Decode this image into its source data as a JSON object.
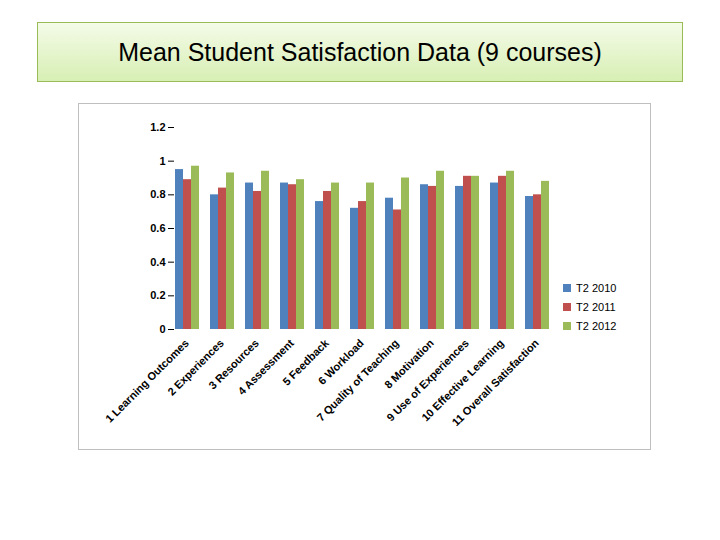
{
  "chart_data": {
    "type": "bar",
    "title": "Mean Student Satisfaction Data (9 courses)",
    "categories": [
      "1 Learning Outcomes",
      "2 Experiences",
      "3 Resources",
      "4 Assessment",
      "5 Feedback",
      "6 Workload",
      "7 Quality of Teaching",
      "8 Motivation",
      "9 Use of Experiences",
      "10 Effective Learning",
      "11 Overall Satisfaction"
    ],
    "series": [
      {
        "name": "T2 2010",
        "color": "#4f81bd",
        "values": [
          0.95,
          0.8,
          0.87,
          0.87,
          0.76,
          0.72,
          0.78,
          0.86,
          0.85,
          0.87,
          0.79
        ]
      },
      {
        "name": "T2 2011",
        "color": "#c0504d",
        "values": [
          0.89,
          0.84,
          0.82,
          0.86,
          0.82,
          0.76,
          0.71,
          0.85,
          0.91,
          0.91,
          0.8
        ]
      },
      {
        "name": "T2 2012",
        "color": "#9bbb59",
        "values": [
          0.97,
          0.93,
          0.94,
          0.89,
          0.87,
          0.87,
          0.9,
          0.94,
          0.91,
          0.94,
          0.88
        ]
      }
    ],
    "ylim": [
      0,
      1.2
    ],
    "yticks": [
      0,
      0.2,
      0.4,
      0.6,
      0.8,
      1,
      1.2
    ],
    "grid": false,
    "legend": "right"
  }
}
